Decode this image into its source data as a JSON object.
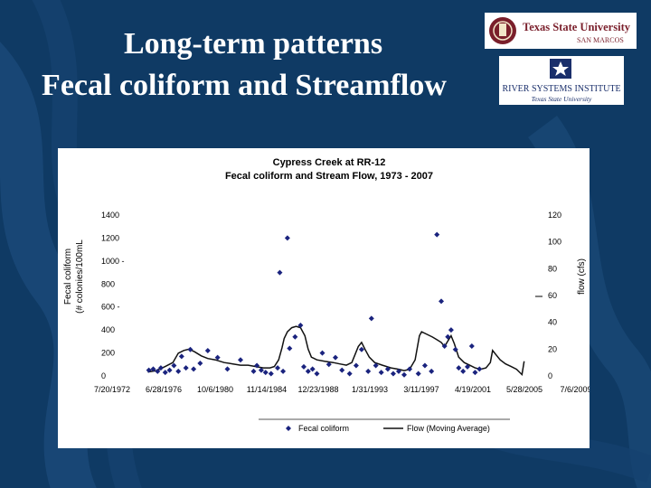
{
  "slide": {
    "title_line1": "Long-term patterns",
    "title_line2": "Fecal coliform and Streamflow",
    "background_color": "#0f3a64"
  },
  "logos": {
    "texas_state": {
      "name": "Texas State University",
      "subtitle": "SAN MARCOS",
      "color": "#7a1f2b"
    },
    "rsi": {
      "name": "RIVER SYSTEMS INSTITUTE",
      "subtitle": "Texas State University",
      "color": "#1a2f6b"
    }
  },
  "chart_data": {
    "type": "scatter",
    "title": "Cypress Creek at RR-12",
    "subtitle": "Fecal coliform and Stream Flow, 1973 - 2007",
    "ylabel_left_line1": "Fecal coliform",
    "ylabel_left_line2": "(# colonies/100mL",
    "ylabel_right": "flow (cfs)",
    "x_ticks": [
      "7/20/1972",
      "6/28/1976",
      "10/6/1980",
      "11/14/1984",
      "12/23/1988",
      "1/31/1993",
      "3/11/1997",
      "4/19/2001",
      "5/28/2005",
      "7/6/2009"
    ],
    "y_left_ticks": [
      "0",
      "200",
      "400",
      "600 -",
      "800",
      "1000 -",
      "1200",
      "1400"
    ],
    "y_right_ticks": [
      "0",
      "20",
      "40",
      "60",
      "80",
      "100",
      "120"
    ],
    "ylim_left": [
      0,
      1400
    ],
    "ylim_right": [
      0,
      120
    ],
    "xlim": [
      1972.55,
      2009.51
    ],
    "grid": false,
    "legend_position": "bottom",
    "series": [
      {
        "name": "Fecal coliform",
        "kind": "scatter",
        "axis": "left",
        "color": "#1a237e",
        "points": [
          [
            1973.1,
            50
          ],
          [
            1973.5,
            60
          ],
          [
            1973.9,
            40
          ],
          [
            1974.2,
            70
          ],
          [
            1974.6,
            30
          ],
          [
            1975.0,
            50
          ],
          [
            1975.4,
            90
          ],
          [
            1975.8,
            40
          ],
          [
            1976.1,
            170
          ],
          [
            1976.5,
            70
          ],
          [
            1976.9,
            230
          ],
          [
            1977.2,
            60
          ],
          [
            1977.8,
            110
          ],
          [
            1978.5,
            220
          ],
          [
            1979.4,
            160
          ],
          [
            1980.3,
            60
          ],
          [
            1981.5,
            140
          ],
          [
            1982.7,
            40
          ],
          [
            1983.0,
            90
          ],
          [
            1983.4,
            50
          ],
          [
            1983.8,
            30
          ],
          [
            1984.3,
            20
          ],
          [
            1984.9,
            70
          ],
          [
            1985.1,
            900
          ],
          [
            1985.4,
            40
          ],
          [
            1985.8,
            1200
          ],
          [
            1986.0,
            240
          ],
          [
            1986.5,
            340
          ],
          [
            1987.0,
            440
          ],
          [
            1987.3,
            80
          ],
          [
            1987.7,
            40
          ],
          [
            1988.1,
            60
          ],
          [
            1988.5,
            20
          ],
          [
            1989.0,
            200
          ],
          [
            1989.6,
            100
          ],
          [
            1990.2,
            160
          ],
          [
            1990.8,
            50
          ],
          [
            1991.5,
            20
          ],
          [
            1992.1,
            90
          ],
          [
            1992.6,
            230
          ],
          [
            1993.2,
            40
          ],
          [
            1993.5,
            500
          ],
          [
            1993.9,
            90
          ],
          [
            1994.4,
            30
          ],
          [
            1995.0,
            60
          ],
          [
            1995.5,
            20
          ],
          [
            1996.0,
            40
          ],
          [
            1996.5,
            10
          ],
          [
            1997.0,
            60
          ],
          [
            1997.8,
            20
          ],
          [
            1998.4,
            90
          ],
          [
            1999.0,
            40
          ],
          [
            1999.5,
            1230
          ],
          [
            1999.9,
            650
          ],
          [
            2000.2,
            260
          ],
          [
            2000.5,
            340
          ],
          [
            2000.8,
            400
          ],
          [
            2001.2,
            230
          ],
          [
            2001.5,
            70
          ],
          [
            2001.9,
            40
          ],
          [
            2002.3,
            80
          ],
          [
            2002.7,
            260
          ],
          [
            2003.0,
            30
          ],
          [
            2003.4,
            60
          ]
        ]
      },
      {
        "name": "Flow (Moving Average)",
        "kind": "line",
        "axis": "right",
        "color": "#111111",
        "points": [
          [
            1973.0,
            3
          ],
          [
            1973.8,
            4
          ],
          [
            1974.6,
            7
          ],
          [
            1975.3,
            10
          ],
          [
            1975.8,
            17
          ],
          [
            1976.3,
            19
          ],
          [
            1976.8,
            20
          ],
          [
            1977.3,
            18
          ],
          [
            1977.9,
            15
          ],
          [
            1978.5,
            13
          ],
          [
            1979.2,
            12
          ],
          [
            1980.0,
            10
          ],
          [
            1980.8,
            9
          ],
          [
            1981.5,
            8
          ],
          [
            1982.2,
            8
          ],
          [
            1982.9,
            7
          ],
          [
            1983.6,
            6
          ],
          [
            1984.2,
            6
          ],
          [
            1984.6,
            7
          ],
          [
            1985.0,
            12
          ],
          [
            1985.3,
            21
          ],
          [
            1985.5,
            28
          ],
          [
            1985.8,
            33
          ],
          [
            1986.2,
            36
          ],
          [
            1986.6,
            37
          ],
          [
            1987.0,
            36
          ],
          [
            1987.4,
            30
          ],
          [
            1987.7,
            20
          ],
          [
            1988.0,
            14
          ],
          [
            1988.5,
            12
          ],
          [
            1989.2,
            11
          ],
          [
            1990.0,
            10
          ],
          [
            1990.6,
            9
          ],
          [
            1991.2,
            8
          ],
          [
            1991.7,
            10
          ],
          [
            1992.0,
            16
          ],
          [
            1992.3,
            22
          ],
          [
            1992.6,
            25
          ],
          [
            1992.9,
            20
          ],
          [
            1993.3,
            14
          ],
          [
            1993.8,
            10
          ],
          [
            1994.5,
            8
          ],
          [
            1995.3,
            6
          ],
          [
            1996.0,
            5
          ],
          [
            1996.5,
            4
          ],
          [
            1997.0,
            5
          ],
          [
            1997.5,
            12
          ],
          [
            1997.9,
            30
          ],
          [
            1998.1,
            33
          ],
          [
            1998.6,
            31
          ],
          [
            1999.1,
            29
          ],
          [
            1999.5,
            27
          ],
          [
            1999.9,
            25
          ],
          [
            2000.2,
            22
          ],
          [
            2000.5,
            26
          ],
          [
            2000.8,
            30
          ],
          [
            2001.1,
            24
          ],
          [
            2001.5,
            14
          ],
          [
            2002.0,
            10
          ],
          [
            2002.5,
            8
          ],
          [
            2003.0,
            6
          ],
          [
            2003.5,
            5
          ],
          [
            2004.0,
            6
          ],
          [
            2004.4,
            10
          ],
          [
            2004.6,
            19
          ],
          [
            2004.9,
            16
          ],
          [
            2005.3,
            12
          ],
          [
            2005.8,
            9
          ],
          [
            2006.3,
            7
          ],
          [
            2006.8,
            5
          ],
          [
            2007.3,
            1
          ],
          [
            2007.5,
            11
          ]
        ]
      }
    ]
  }
}
